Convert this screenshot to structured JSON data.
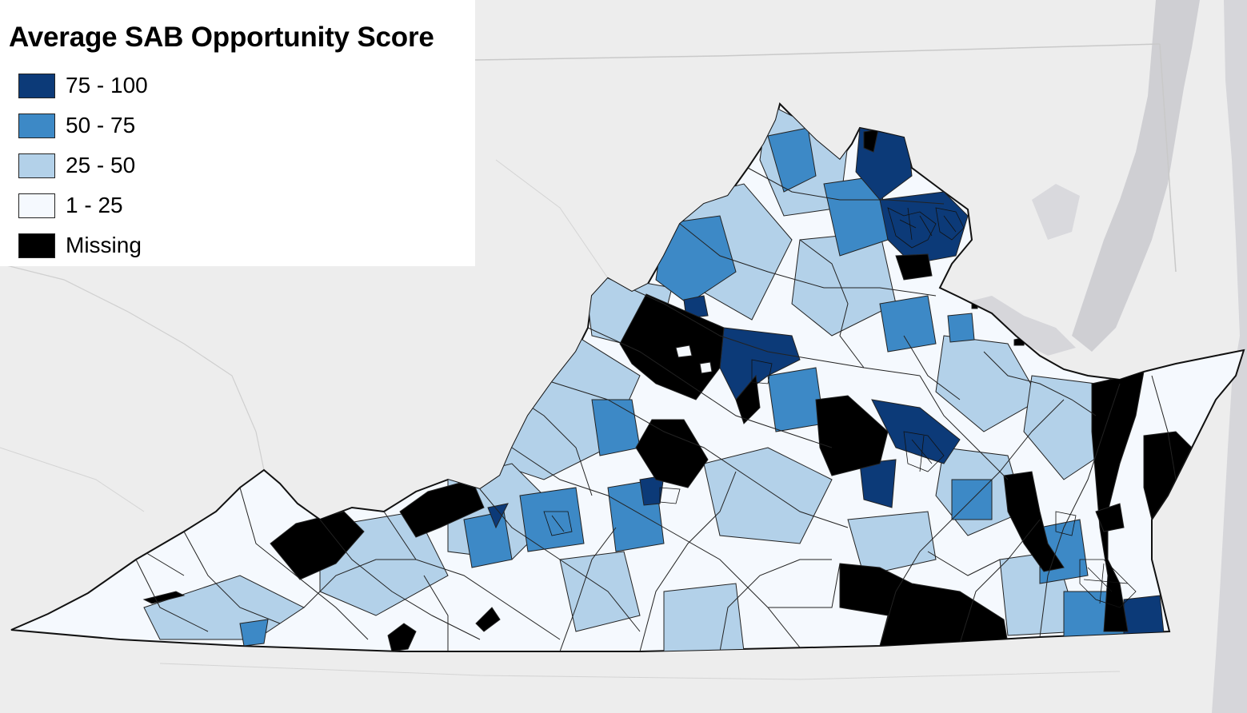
{
  "legend": {
    "title": "Average SAB Opportunity Score",
    "items": [
      {
        "label": "75 - 100",
        "color": "#0c3a78"
      },
      {
        "label": "50 - 75",
        "color": "#3d89c6"
      },
      {
        "label": "25 - 50",
        "color": "#b3d1e9"
      },
      {
        "label": "1 - 25",
        "color": "#f5f9fe"
      },
      {
        "label": "Missing",
        "color": "#000000"
      }
    ]
  },
  "colors": {
    "basemap_land": "#ededed",
    "basemap_water": "#cfcfd3",
    "boundary_lines": "#222222"
  }
}
